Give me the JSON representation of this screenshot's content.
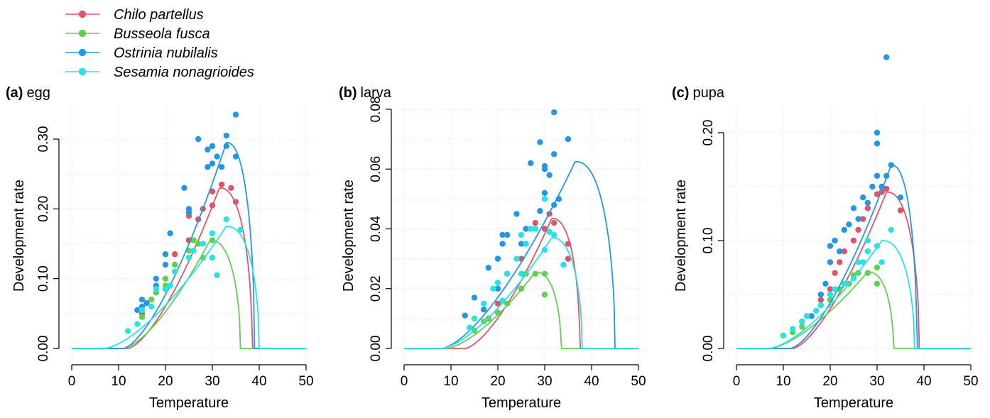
{
  "legend": [
    {
      "label": "Chilo partellus",
      "color": "#DF536B"
    },
    {
      "label": "Busseola fusca",
      "color": "#61D04F"
    },
    {
      "label": "Ostrinia nubilalis",
      "color": "#2297E6"
    },
    {
      "label": "Sesamia nonagrioides",
      "color": "#28E2E5"
    }
  ],
  "chart_data": [
    {
      "type": "scatter",
      "panel_letter": "(a)",
      "panel_name": "egg",
      "xlabel": "Temperature",
      "ylabel": "Development rate",
      "xlim": [
        0,
        50
      ],
      "ylim": [
        0,
        0.3
      ],
      "xticks": [
        "0",
        "10",
        "20",
        "30",
        "40",
        "50"
      ],
      "yticks": [
        "0.00",
        "0.10",
        "0.20",
        "0.30"
      ],
      "ytick_values": [
        0,
        0.1,
        0.2,
        0.3
      ],
      "grid": true,
      "series": [
        {
          "name": "Chilo partellus",
          "color": "#DF536B",
          "points": [
            [
              15,
              0.05
            ],
            [
              17,
              0.07
            ],
            [
              18,
              0.08
            ],
            [
              20,
              0.09
            ],
            [
              20,
              0.1
            ],
            [
              22,
              0.135
            ],
            [
              25,
              0.155
            ],
            [
              25,
              0.19
            ],
            [
              27,
              0.185
            ],
            [
              28,
              0.2
            ],
            [
              30,
              0.205
            ],
            [
              30,
              0.225
            ],
            [
              32,
              0.235
            ],
            [
              34,
              0.23
            ],
            [
              35,
              0.21
            ]
          ],
          "curve": {
            "tmin": 12,
            "tmax": 38.5,
            "peak_t": 31.5,
            "peak_r": 0.23
          }
        },
        {
          "name": "Busseola fusca",
          "color": "#61D04F",
          "points": [
            [
              15,
              0.045
            ],
            [
              17,
              0.07
            ],
            [
              18,
              0.08
            ],
            [
              20,
              0.1
            ],
            [
              20,
              0.09
            ],
            [
              22,
              0.12
            ],
            [
              25,
              0.14
            ],
            [
              26,
              0.155
            ],
            [
              27,
              0.15
            ],
            [
              28,
              0.13
            ],
            [
              30,
              0.155
            ],
            [
              30,
              0.13
            ]
          ],
          "curve": {
            "tmin": 11,
            "tmax": 36,
            "peak_t": 29.5,
            "peak_r": 0.155
          }
        },
        {
          "name": "Ostrinia nubilalis",
          "color": "#2297E6",
          "points": [
            [
              14,
              0.055
            ],
            [
              15,
              0.06
            ],
            [
              15,
              0.07
            ],
            [
              16,
              0.065
            ],
            [
              18,
              0.09
            ],
            [
              18,
              0.1
            ],
            [
              20,
              0.12
            ],
            [
              20,
              0.135
            ],
            [
              21,
              0.165
            ],
            [
              24,
              0.23
            ],
            [
              25,
              0.195
            ],
            [
              25,
              0.2
            ],
            [
              27,
              0.3
            ],
            [
              29,
              0.26
            ],
            [
              29,
              0.285
            ],
            [
              30,
              0.29
            ],
            [
              30,
              0.265
            ],
            [
              31,
              0.275
            ],
            [
              32,
              0.26
            ],
            [
              33,
              0.305
            ],
            [
              33,
              0.29
            ],
            [
              35,
              0.275
            ],
            [
              35,
              0.335
            ]
          ],
          "curve": {
            "tmin": 11,
            "tmax": 39,
            "peak_t": 33,
            "peak_r": 0.295
          }
        },
        {
          "name": "Sesamia nonagrioides",
          "color": "#28E2E5",
          "points": [
            [
              12,
              0.025
            ],
            [
              14,
              0.035
            ],
            [
              15,
              0.055
            ],
            [
              17,
              0.06
            ],
            [
              18,
              0.085
            ],
            [
              20,
              0.085
            ],
            [
              21,
              0.09
            ],
            [
              22,
              0.11
            ],
            [
              25,
              0.13
            ],
            [
              26,
              0.14
            ],
            [
              28,
              0.15
            ],
            [
              30,
              0.13
            ],
            [
              30,
              0.165
            ],
            [
              31,
              0.105
            ],
            [
              33,
              0.185
            ],
            [
              36,
              0.17
            ]
          ],
          "curve": {
            "tmin": 7,
            "tmax": 40,
            "peak_t": 33,
            "peak_r": 0.175
          }
        }
      ]
    },
    {
      "type": "scatter",
      "panel_letter": "(b)",
      "panel_name": "larva",
      "xlabel": "Temperature",
      "ylabel": "Development rate",
      "xlim": [
        0,
        50
      ],
      "ylim": [
        0,
        0.08
      ],
      "xticks": [
        "0",
        "10",
        "20",
        "30",
        "40",
        "50"
      ],
      "yticks": [
        "0.00",
        "0.02",
        "0.04",
        "0.06",
        "0.08"
      ],
      "ytick_values": [
        0,
        0.02,
        0.04,
        0.06,
        0.08
      ],
      "grid": true,
      "series": [
        {
          "name": "Chilo partellus",
          "color": "#DF536B",
          "points": [
            [
              18,
              0.01
            ],
            [
              20,
              0.015
            ],
            [
              22,
              0.025
            ],
            [
              25,
              0.03
            ],
            [
              26,
              0.035
            ],
            [
              28,
              0.042
            ],
            [
              30,
              0.04
            ],
            [
              31,
              0.045
            ],
            [
              32,
              0.042
            ],
            [
              35,
              0.035
            ],
            [
              35,
              0.03
            ]
          ],
          "curve": {
            "tmin": 13,
            "tmax": 37.5,
            "peak_t": 31.5,
            "peak_r": 0.0435
          }
        },
        {
          "name": "Busseola fusca",
          "color": "#61D04F",
          "points": [
            [
              15,
              0.006
            ],
            [
              17,
              0.009
            ],
            [
              18,
              0.01
            ],
            [
              20,
              0.012
            ],
            [
              22,
              0.015
            ],
            [
              25,
              0.02
            ],
            [
              26,
              0.025
            ],
            [
              28,
              0.025
            ],
            [
              30,
              0.025
            ],
            [
              30,
              0.018
            ]
          ],
          "curve": {
            "tmin": 9,
            "tmax": 33.5,
            "peak_t": 28,
            "peak_r": 0.0255
          }
        },
        {
          "name": "Ostrinia nubilalis",
          "color": "#2297E6",
          "points": [
            [
              13,
              0.011
            ],
            [
              15,
              0.017
            ],
            [
              17,
              0.013
            ],
            [
              18,
              0.027
            ],
            [
              20,
              0.02
            ],
            [
              20,
              0.03
            ],
            [
              21,
              0.038
            ],
            [
              21,
              0.035
            ],
            [
              22,
              0.038
            ],
            [
              24,
              0.045
            ],
            [
              25,
              0.035
            ],
            [
              26,
              0.04
            ],
            [
              27,
              0.062
            ],
            [
              29,
              0.046
            ],
            [
              29,
              0.069
            ],
            [
              30,
              0.06
            ],
            [
              30,
              0.052
            ],
            [
              30,
              0.061
            ],
            [
              31,
              0.058
            ],
            [
              32,
              0.048
            ],
            [
              32,
              0.079
            ],
            [
              32,
              0.065
            ],
            [
              33,
              0.05
            ],
            [
              35,
              0.07
            ]
          ],
          "curve": {
            "tmin": 8,
            "tmax": 45,
            "peak_t": 36.5,
            "peak_r": 0.0625
          }
        },
        {
          "name": "Sesamia nonagrioides",
          "color": "#28E2E5",
          "points": [
            [
              14,
              0.007
            ],
            [
              15,
              0.01
            ],
            [
              17,
              0.015
            ],
            [
              19,
              0.02
            ],
            [
              20,
              0.022
            ],
            [
              21,
              0.016
            ],
            [
              22,
              0.025
            ],
            [
              24,
              0.03
            ],
            [
              25,
              0.025
            ],
            [
              25,
              0.038
            ],
            [
              26,
              0.035
            ],
            [
              27,
              0.04
            ],
            [
              28,
              0.04
            ],
            [
              30,
              0.033
            ],
            [
              30,
              0.05
            ],
            [
              31,
              0.039
            ],
            [
              32,
              0.038
            ],
            [
              34,
              0.028
            ]
          ],
          "curve": {
            "tmin": 8,
            "tmax": 38,
            "peak_t": 31.5,
            "peak_r": 0.037
          }
        }
      ]
    },
    {
      "type": "scatter",
      "panel_letter": "(c)",
      "panel_name": "pupa",
      "xlabel": "Temperature",
      "ylabel": "Development rate",
      "xlim": [
        0,
        50
      ],
      "ylim": [
        0,
        0.22
      ],
      "xticks": [
        "0",
        "10",
        "20",
        "30",
        "40",
        "50"
      ],
      "yticks": [
        "0.00",
        "0.10",
        "0.20"
      ],
      "ytick_values": [
        0,
        0.1,
        0.2
      ],
      "grid": true,
      "series": [
        {
          "name": "Chilo partellus",
          "color": "#DF536B",
          "points": [
            [
              16,
              0.03
            ],
            [
              18,
              0.045
            ],
            [
              20,
              0.055
            ],
            [
              21,
              0.07
            ],
            [
              22,
              0.08
            ],
            [
              23,
              0.09
            ],
            [
              25,
              0.1
            ],
            [
              26,
              0.11
            ],
            [
              27,
              0.12
            ],
            [
              28,
              0.13
            ],
            [
              30,
              0.143
            ],
            [
              31,
              0.145
            ],
            [
              32,
              0.148
            ],
            [
              35,
              0.128
            ]
          ],
          "curve": {
            "tmin": 12,
            "tmax": 39,
            "peak_t": 32,
            "peak_r": 0.145
          }
        },
        {
          "name": "Busseola fusca",
          "color": "#61D04F",
          "points": [
            [
              12,
              0.015
            ],
            [
              14,
              0.02
            ],
            [
              16,
              0.03
            ],
            [
              18,
              0.04
            ],
            [
              20,
              0.045
            ],
            [
              22,
              0.055
            ],
            [
              24,
              0.06
            ],
            [
              25,
              0.068
            ],
            [
              26,
              0.07
            ],
            [
              28,
              0.07
            ],
            [
              30,
              0.075
            ],
            [
              30,
              0.06
            ]
          ],
          "curve": {
            "tmin": 7,
            "tmax": 33.5,
            "peak_t": 28,
            "peak_r": 0.071
          }
        },
        {
          "name": "Ostrinia nubilalis",
          "color": "#2297E6",
          "points": [
            [
              14,
              0.025
            ],
            [
              16,
              0.03
            ],
            [
              18,
              0.05
            ],
            [
              19,
              0.06
            ],
            [
              20,
              0.08
            ],
            [
              20,
              0.095
            ],
            [
              21,
              0.1
            ],
            [
              22,
              0.09
            ],
            [
              23,
              0.11
            ],
            [
              24,
              0.115
            ],
            [
              25,
              0.13
            ],
            [
              26,
              0.12
            ],
            [
              27,
              0.14
            ],
            [
              28,
              0.135
            ],
            [
              29,
              0.15
            ],
            [
              30,
              0.2
            ],
            [
              30,
              0.19
            ],
            [
              30,
              0.16
            ],
            [
              31,
              0.15
            ],
            [
              32,
              0.16
            ],
            [
              32,
              0.27
            ],
            [
              33,
              0.17
            ],
            [
              35,
              0.14
            ]
          ],
          "curve": {
            "tmin": 11.5,
            "tmax": 38.5,
            "peak_t": 33,
            "peak_r": 0.17
          }
        },
        {
          "name": "Sesamia nonagrioides",
          "color": "#28E2E5",
          "points": [
            [
              10,
              0.012
            ],
            [
              12,
              0.018
            ],
            [
              14,
              0.025
            ],
            [
              15,
              0.03
            ],
            [
              17,
              0.035
            ],
            [
              18,
              0.04
            ],
            [
              20,
              0.05
            ],
            [
              21,
              0.055
            ],
            [
              23,
              0.06
            ],
            [
              25,
              0.065
            ],
            [
              26,
              0.08
            ],
            [
              27,
              0.08
            ],
            [
              28,
              0.09
            ],
            [
              28,
              0.1
            ],
            [
              30,
              0.095
            ],
            [
              31,
              0.08
            ],
            [
              33,
              0.11
            ]
          ],
          "curve": {
            "tmin": 7,
            "tmax": 38,
            "peak_t": 31,
            "peak_r": 0.1
          }
        }
      ]
    }
  ]
}
